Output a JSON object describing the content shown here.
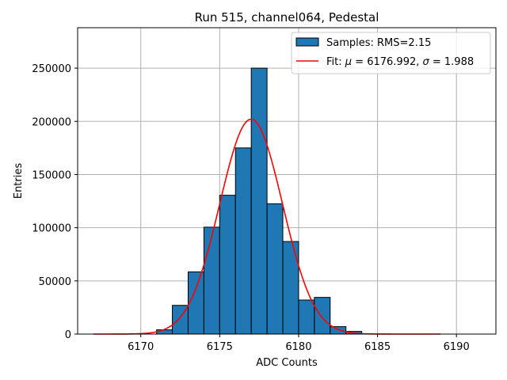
{
  "chart_data": {
    "type": "bar",
    "title": "Run 515, channel064, Pedestal",
    "xlabel": "ADC Counts",
    "ylabel": "Entries",
    "xlim": [
      6166.0,
      6192.5
    ],
    "ylim": [
      0,
      288000
    ],
    "grid": true,
    "legend_position": "top-right",
    "xticks": [
      6170,
      6175,
      6180,
      6185,
      6190
    ],
    "yticks": [
      0,
      50000,
      100000,
      150000,
      200000,
      250000
    ],
    "series": [
      {
        "name": "Samples",
        "kind": "histogram",
        "legend_label": "Samples: RMS=2.15",
        "color": "#1f77b4",
        "edge_color": "#000000",
        "bin_width": 1,
        "bin_starts": [
          6171,
          6172,
          6173,
          6174,
          6175,
          6176,
          6177,
          6178,
          6179,
          6180,
          6181,
          6182,
          6183
        ],
        "values": [
          4000,
          27000,
          58500,
          100500,
          130500,
          175000,
          250000,
          122500,
          87000,
          32000,
          34500,
          7000,
          2500
        ]
      },
      {
        "name": "Fit",
        "kind": "gaussian",
        "legend_label": "Fit: μ = 6176.992, σ = 1.988",
        "color": "#ff0000",
        "mu": 6176.992,
        "sigma": 1.988,
        "amplitude": 202000,
        "x_range": [
          6167,
          6189
        ]
      }
    ]
  }
}
